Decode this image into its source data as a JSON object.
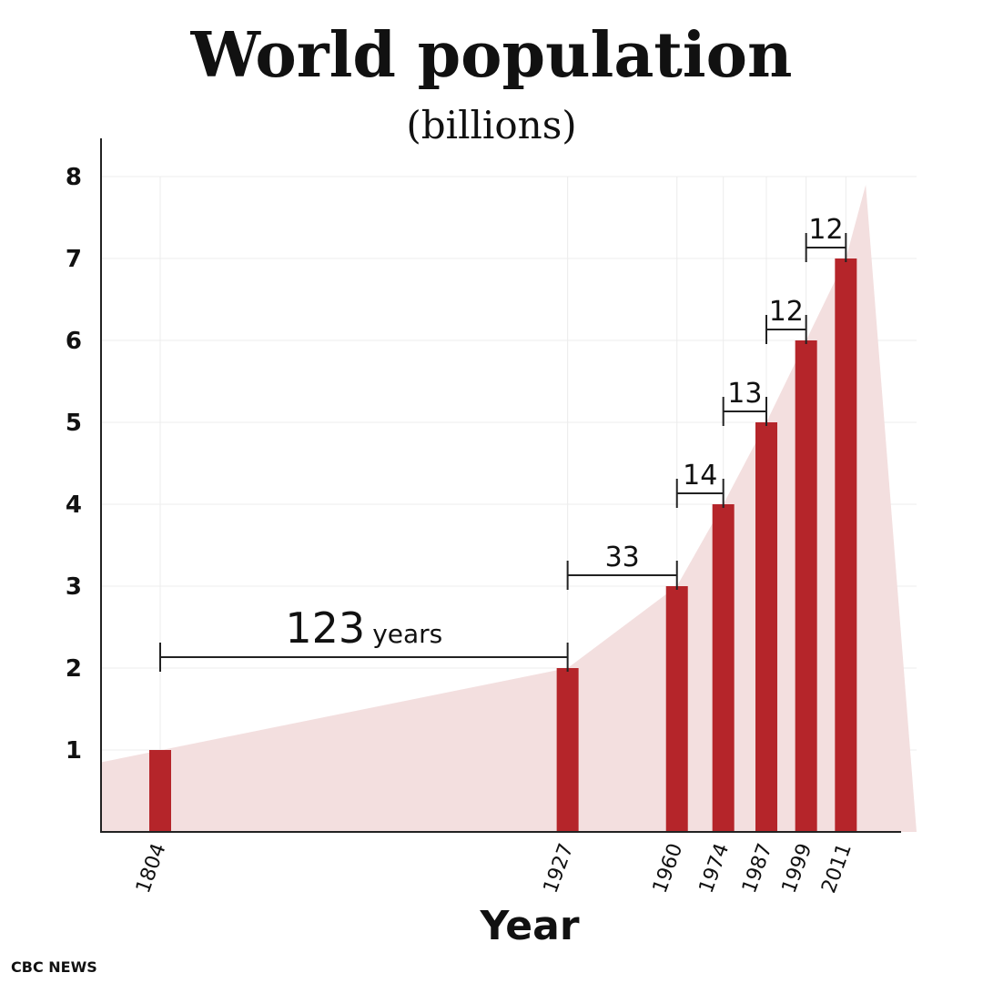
{
  "chart_data": {
    "type": "bar",
    "title": "World population",
    "subtitle": "(billions)",
    "xlabel": "Year",
    "ylabel": "",
    "ylim": [
      0,
      8
    ],
    "yticks": [
      1,
      2,
      3,
      4,
      5,
      6,
      7,
      8
    ],
    "grid": true,
    "categories": [
      "1804",
      "1927",
      "1960",
      "1974",
      "1987",
      "1999",
      "2011"
    ],
    "x": [
      1804,
      1927,
      1960,
      1974,
      1987,
      1999,
      2011
    ],
    "values": [
      1,
      2,
      3,
      4,
      5,
      6,
      7
    ],
    "annotations": [
      {
        "from": 1804,
        "to": 1927,
        "at": 2.2,
        "value": "123",
        "unit": "years"
      },
      {
        "from": 1927,
        "to": 1960,
        "at": 3.2,
        "value": "33"
      },
      {
        "from": 1960,
        "to": 1974,
        "at": 4.2,
        "value": "14"
      },
      {
        "from": 1974,
        "to": 1987,
        "at": 5.2,
        "value": "13"
      },
      {
        "from": 1987,
        "to": 1999,
        "at": 6.2,
        "value": "12"
      },
      {
        "from": 1999,
        "to": 2011,
        "at": 7.2,
        "value": "12"
      }
    ],
    "trend_area": {
      "x": [
        1774,
        1927,
        1960,
        1974,
        1987,
        1999,
        2011,
        2017
      ],
      "y": [
        0.85,
        2.0,
        3.0,
        4.0,
        5.0,
        6.0,
        7.0,
        7.9
      ]
    },
    "colors": {
      "bar": "#b5252a",
      "area": "#f3dfdf",
      "grid": "#ececec",
      "axis": "#222222"
    }
  },
  "source": "CBC NEWS"
}
